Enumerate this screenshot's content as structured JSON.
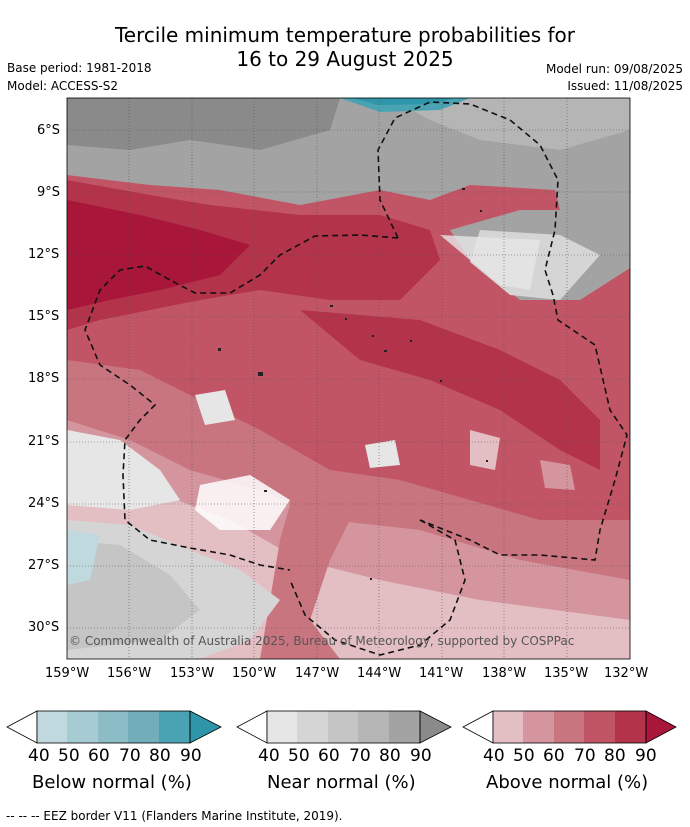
{
  "title": {
    "line1": "Tercile minimum temperature probabilities for",
    "line2": "16 to 29 August 2025"
  },
  "meta": {
    "base_period": "Base period: 1981-2018",
    "model": "Model: ACCESS-S2",
    "model_run": "Model run: 09/08/2025",
    "issued": "Issued: 11/08/2025"
  },
  "map": {
    "lat_labels": [
      "6°S",
      "9°S",
      "12°S",
      "15°S",
      "18°S",
      "21°S",
      "24°S",
      "27°S",
      "30°S"
    ],
    "lon_labels": [
      "159°W",
      "156°W",
      "153°W",
      "150°W",
      "147°W",
      "144°W",
      "141°W",
      "138°W",
      "135°W",
      "132°W"
    ],
    "copyright": "© Commonwealth of Australia 2025, Bureau of Meteorology, supported by COSPPac"
  },
  "colorbars": [
    {
      "label": "Below normal (%)",
      "ticks": [
        "40",
        "50",
        "60",
        "70",
        "80",
        "90"
      ],
      "colors": [
        "#bfd9de",
        "#a6cbd3",
        "#8cbcc6",
        "#72adba",
        "#4aa3b3",
        "#2f96a9"
      ]
    },
    {
      "label": "Near normal (%)",
      "ticks": [
        "40",
        "50",
        "60",
        "70",
        "80",
        "90"
      ],
      "colors": [
        "#e6e6e6",
        "#d5d5d5",
        "#c5c5c5",
        "#b5b5b5",
        "#a3a3a3",
        "#8a8a8a"
      ]
    },
    {
      "label": "Above normal (%)",
      "ticks": [
        "40",
        "50",
        "60",
        "70",
        "80",
        "90"
      ],
      "colors": [
        "#e3bfc4",
        "#d4959f",
        "#c87580",
        "#c25565",
        "#b2334a",
        "#a8163a"
      ]
    }
  ],
  "footer": "--  --  -- EEZ border V11 (Flanders Marine Institute, 2019)."
}
